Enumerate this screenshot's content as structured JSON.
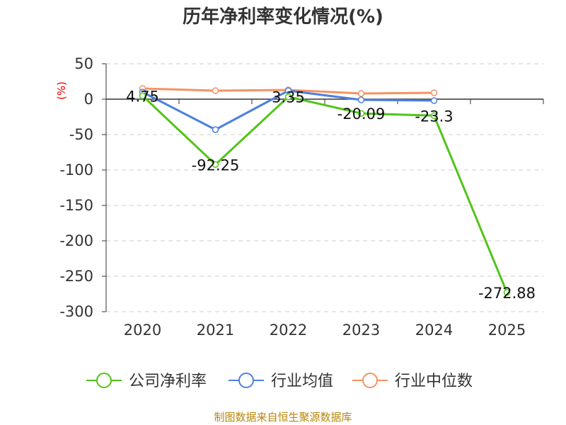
{
  "chart_data": {
    "type": "line",
    "title": "历年净利率变化情况(%)",
    "unit_label": "(%)",
    "categories": [
      "2020",
      "2021",
      "2022",
      "2023",
      "2024",
      "2025"
    ],
    "ylim": [
      -300,
      50
    ],
    "yticks": [
      50,
      0,
      -50,
      -100,
      -150,
      -200,
      -250,
      -300
    ],
    "ytick_labels": [
      "50",
      "0",
      "-50",
      "-100",
      "-150",
      "-200",
      "-250",
      "-300"
    ],
    "grid": true,
    "legend_position": "bottom",
    "series": [
      {
        "name": "公司净利率",
        "color": "#52c41a",
        "values": [
          4.75,
          -92.25,
          3.35,
          -20.09,
          -23.3,
          -272.88
        ],
        "labels": [
          "4.75",
          "-92.25",
          "3.35",
          "-20.09",
          "-23.3",
          "-272.88"
        ]
      },
      {
        "name": "行业均值",
        "color": "#4e7fde",
        "values": [
          10,
          -43,
          12,
          -1,
          -2,
          null
        ]
      },
      {
        "name": "行业中位数",
        "color": "#f59362",
        "values": [
          15,
          12,
          13,
          8,
          9,
          null
        ]
      }
    ]
  },
  "source_text": "制图数据来自恒生聚源数据库"
}
